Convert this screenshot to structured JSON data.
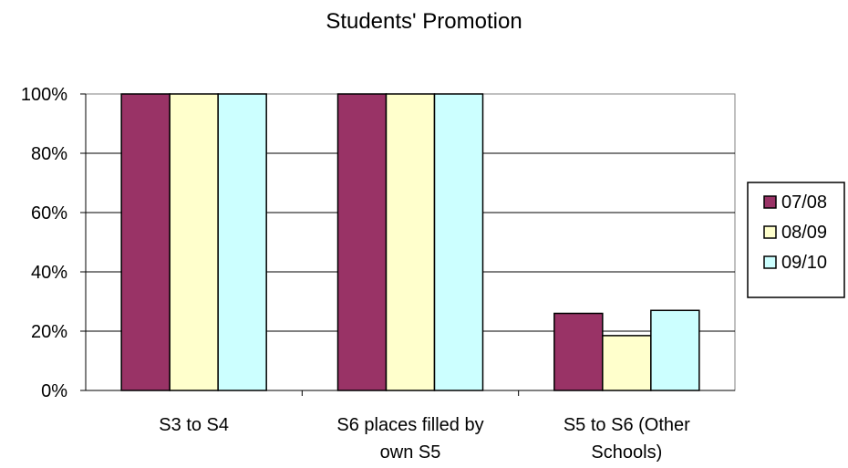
{
  "chart_data": {
    "type": "bar",
    "title": "Students' Promotion",
    "categories": [
      [
        "S3 to S4"
      ],
      [
        "S6 places filled by",
        "own S5"
      ],
      [
        "S5 to S6 (Other",
        "Schools)"
      ]
    ],
    "series": [
      {
        "name": "07/08",
        "color": "#993366",
        "values": [
          100,
          100,
          26
        ]
      },
      {
        "name": "08/09",
        "color": "#FFFFCC",
        "values": [
          100,
          100,
          18.5
        ]
      },
      {
        "name": "09/10",
        "color": "#CCFFFF",
        "values": [
          100,
          100,
          27
        ]
      }
    ],
    "ylim": [
      0,
      100
    ],
    "yticks": [
      "0%",
      "20%",
      "40%",
      "60%",
      "80%",
      "100%"
    ],
    "grid": true,
    "legend": "right"
  }
}
